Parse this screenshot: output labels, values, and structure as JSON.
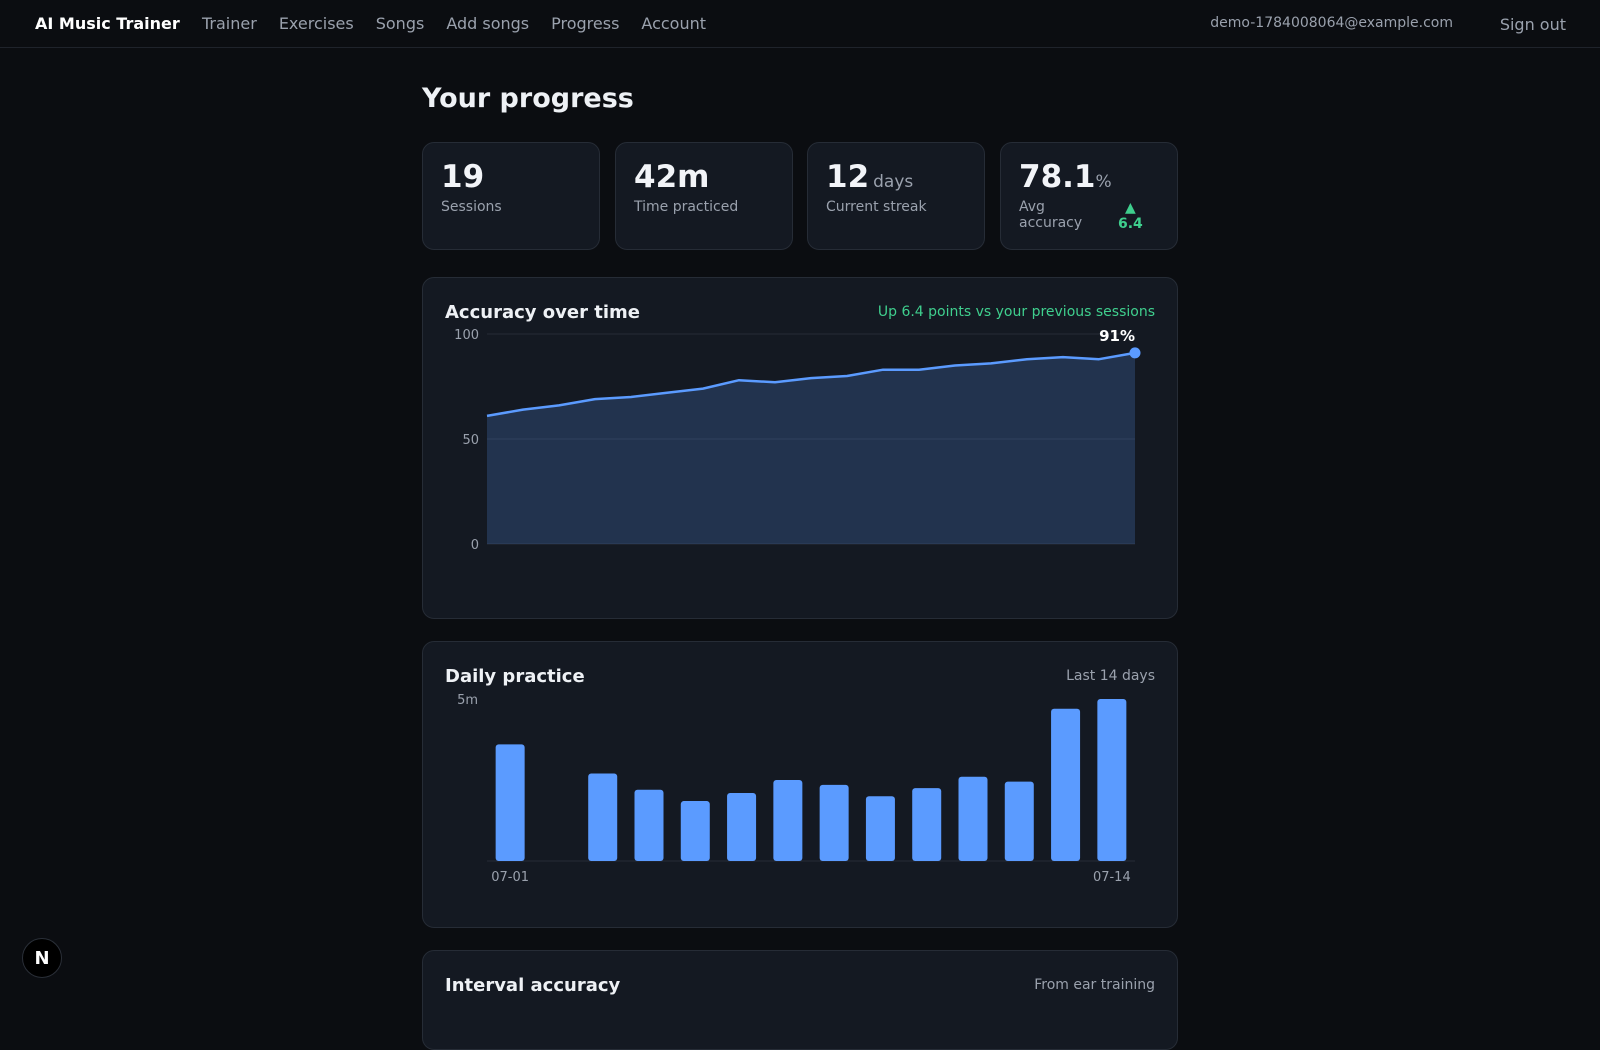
{
  "nav": {
    "brand": "AI Music Trainer",
    "links": [
      "Trainer",
      "Exercises",
      "Songs",
      "Add songs",
      "Progress",
      "Account"
    ],
    "user_email": "demo-1784008064@example.com",
    "sign_out": "Sign out"
  },
  "page": {
    "title": "Your progress"
  },
  "stats": {
    "sessions": {
      "value": "19",
      "label": "Sessions"
    },
    "time": {
      "value": "42m",
      "label": "Time practiced"
    },
    "streak": {
      "value": "12",
      "unit": "days",
      "label": "Current streak"
    },
    "accuracy": {
      "value": "78.1",
      "unit": "%",
      "label": "Avg accuracy",
      "delta_arrow": "▲",
      "delta": "6.4"
    }
  },
  "accuracy_panel": {
    "title": "Accuracy over time",
    "note": "Up 6.4 points vs your previous sessions",
    "last_label": "91%"
  },
  "daily_panel": {
    "title": "Daily practice",
    "note": "Last 14 days",
    "y_label": "5m",
    "x_start": "07-01",
    "x_end": "07-14"
  },
  "interval_panel": {
    "title": "Interval accuracy",
    "note": "From ear training"
  },
  "fab": {
    "label": "N"
  },
  "colors": {
    "accent": "#5b9bff",
    "positive": "#3fcf8e",
    "background": "#0b0d11",
    "card": "#141922"
  },
  "chart_data": [
    {
      "type": "area",
      "title": "Accuracy over time",
      "ylim": [
        0,
        100
      ],
      "yticks": [
        0,
        50,
        100
      ],
      "grid": true,
      "series": [
        {
          "values": [
            61,
            64,
            66,
            69,
            70,
            72,
            74,
            78,
            77,
            79,
            80,
            83,
            83,
            85,
            86,
            88,
            89,
            88,
            91
          ]
        }
      ]
    },
    {
      "type": "bar",
      "title": "Daily practice",
      "categories": [
        "07-01",
        "07-02",
        "07-03",
        "07-04",
        "07-05",
        "07-06",
        "07-07",
        "07-08",
        "07-09",
        "07-10",
        "07-11",
        "07-12",
        "07-13",
        "07-14"
      ],
      "values": [
        3.6,
        0,
        2.7,
        2.2,
        1.85,
        2.1,
        2.5,
        2.35,
        2.0,
        2.25,
        2.6,
        2.45,
        4.7,
        5.0
      ],
      "ylim": [
        0,
        5
      ],
      "yunit": "m"
    }
  ]
}
